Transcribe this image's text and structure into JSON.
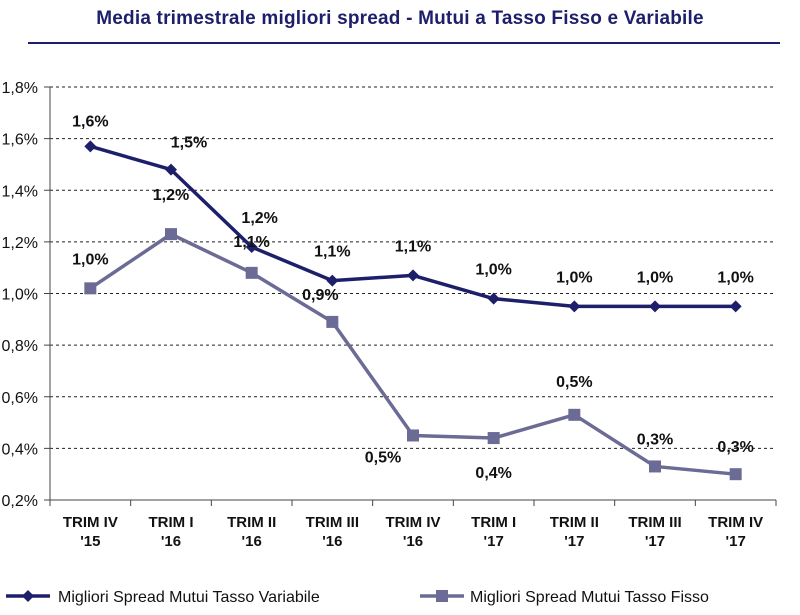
{
  "chart_data": {
    "type": "line",
    "title": "Media trimestrale migliori spread - Mutui a Tasso Fisso e Variabile",
    "categories": [
      [
        "TRIM IV",
        "'15"
      ],
      [
        "TRIM I",
        "'16"
      ],
      [
        "TRIM II",
        "'16"
      ],
      [
        "TRIM III",
        "'16"
      ],
      [
        "TRIM IV",
        "'16"
      ],
      [
        "TRIM I",
        "'17"
      ],
      [
        "TRIM II",
        "'17"
      ],
      [
        "TRIM III",
        "'17"
      ],
      [
        "TRIM IV",
        "'17"
      ]
    ],
    "ylim": [
      0.2,
      1.8
    ],
    "yticks": [
      0.2,
      0.4,
      0.6,
      0.8,
      1.0,
      1.2,
      1.4,
      1.6,
      1.8
    ],
    "ytick_labels": [
      "0,2%",
      "0,4%",
      "0,6%",
      "0,8%",
      "1,0%",
      "1,2%",
      "1,4%",
      "1,6%",
      "1,8%"
    ],
    "grid": "horizontal dashed",
    "legend_position": "bottom",
    "series": [
      {
        "name": "Migliori  Spread Mutui Tasso Variabile",
        "color": "#1d1f6a",
        "marker": "diamond",
        "values": [
          1.57,
          1.48,
          1.18,
          1.05,
          1.07,
          0.98,
          0.95,
          0.95,
          0.95
        ],
        "labels": [
          "1,6%",
          "1,5%",
          "1,2%",
          "1,1%",
          "1,1%",
          "1,0%",
          "1,0%",
          "1,0%",
          "1,0%"
        ]
      },
      {
        "name": "Migliori  Spread Mutui Tasso Fisso",
        "color": "#6b6b96",
        "marker": "square",
        "values": [
          1.02,
          1.23,
          1.08,
          0.89,
          0.45,
          0.44,
          0.53,
          0.33,
          0.3
        ],
        "labels": [
          "1,0%",
          "1,2%",
          "1,1%",
          "0,9%",
          "0,5%",
          "0,4%",
          "0,5%",
          "0,3%",
          "0,3%"
        ]
      }
    ]
  }
}
